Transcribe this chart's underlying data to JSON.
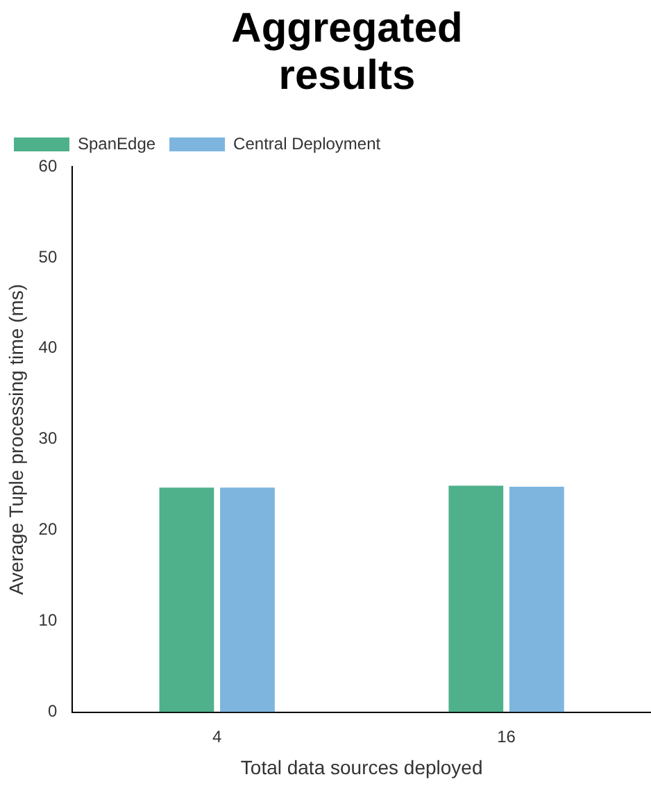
{
  "chart_data": {
    "type": "bar",
    "title": "Aggregated results",
    "xlabel": "Total data sources deployed",
    "ylabel": "Average Tuple processing time (ms)",
    "categories": [
      "4",
      "16"
    ],
    "series": [
      {
        "name": "SpanEdge",
        "color": "#4fb08c",
        "values": [
          24.7,
          24.9
        ]
      },
      {
        "name": "Central Deployment",
        "color": "#7db5de",
        "values": [
          24.7,
          24.8
        ]
      }
    ],
    "ylim": [
      0,
      60
    ],
    "yticks": [
      0,
      10,
      20,
      30,
      40,
      50,
      60
    ],
    "grid": false,
    "legend": "top left"
  }
}
